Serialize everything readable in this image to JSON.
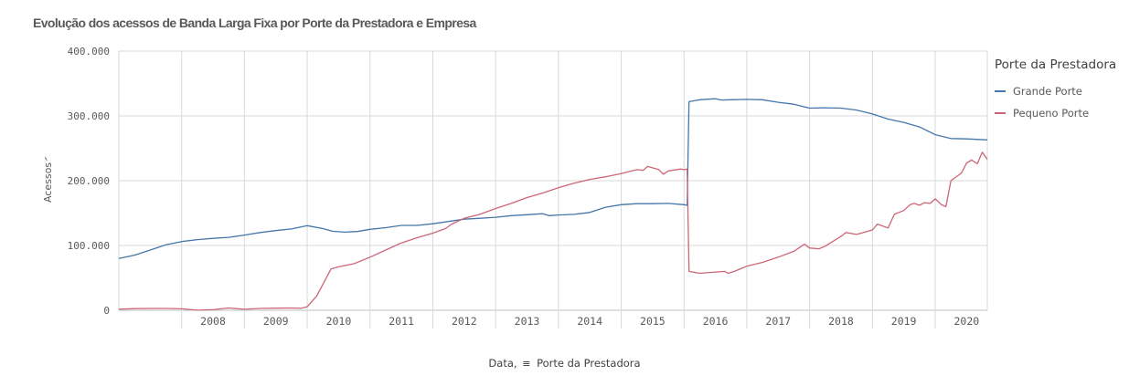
{
  "title": "Evolução dos acessos de Banda Larga Fixa por Porte da Prestadora e Empresa",
  "x_axis_label_prefix": "Data,",
  "x_axis_label_dim": "Porte da Prestadora",
  "colors": {
    "grande": "#4477aa",
    "pequeno": "#cc6677",
    "grid": "#d9d9d9",
    "text": "#595959"
  },
  "chart_data": {
    "type": "line",
    "title": "Evolução dos acessos de Banda Larga Fixa por Porte da Prestadora e Empresa",
    "xlabel": "Data, Porte da Prestadora",
    "ylabel": "Acessos",
    "xlim": [
      2007.0,
      2020.83
    ],
    "ylim": [
      0,
      400000
    ],
    "y_ticks": [
      "0",
      "100.000",
      "200.000",
      "300.000",
      "400.000"
    ],
    "y_tick_values": [
      0,
      100000,
      200000,
      300000,
      400000
    ],
    "x_ticks": [
      "2008",
      "2009",
      "2010",
      "2011",
      "2012",
      "2013",
      "2014",
      "2015",
      "2016",
      "2017",
      "2018",
      "2019",
      "2020"
    ],
    "legend": {
      "title": "Porte da Prestadora",
      "position": "right"
    },
    "series": [
      {
        "name": "Grande Porte",
        "color": "#4477aa",
        "points": [
          [
            2007.0,
            80000
          ],
          [
            2007.25,
            85000
          ],
          [
            2007.5,
            93000
          ],
          [
            2007.75,
            101000
          ],
          [
            2008.0,
            106000
          ],
          [
            2008.25,
            109000
          ],
          [
            2008.5,
            111000
          ],
          [
            2008.75,
            112500
          ],
          [
            2009.0,
            116000
          ],
          [
            2009.25,
            120000
          ],
          [
            2009.5,
            123000
          ],
          [
            2009.75,
            125500
          ],
          [
            2010.0,
            130500
          ],
          [
            2010.25,
            126000
          ],
          [
            2010.4,
            122000
          ],
          [
            2010.6,
            120500
          ],
          [
            2010.8,
            121500
          ],
          [
            2011.0,
            125000
          ],
          [
            2011.25,
            127500
          ],
          [
            2011.5,
            131000
          ],
          [
            2011.75,
            131000
          ],
          [
            2012.0,
            133500
          ],
          [
            2012.25,
            137000
          ],
          [
            2012.5,
            140500
          ],
          [
            2012.75,
            142000
          ],
          [
            2013.0,
            143500
          ],
          [
            2013.25,
            146000
          ],
          [
            2013.5,
            147500
          ],
          [
            2013.75,
            149000
          ],
          [
            2013.85,
            146000
          ],
          [
            2014.0,
            147000
          ],
          [
            2014.25,
            148000
          ],
          [
            2014.5,
            151000
          ],
          [
            2014.75,
            159000
          ],
          [
            2015.0,
            163000
          ],
          [
            2015.25,
            164500
          ],
          [
            2015.5,
            164500
          ],
          [
            2015.75,
            165000
          ],
          [
            2016.0,
            163000
          ],
          [
            2016.05,
            162000
          ],
          [
            2016.08,
            322000
          ],
          [
            2016.25,
            325000
          ],
          [
            2016.5,
            326500
          ],
          [
            2016.6,
            324500
          ],
          [
            2016.75,
            325000
          ],
          [
            2017.0,
            325500
          ],
          [
            2017.25,
            325000
          ],
          [
            2017.5,
            321000
          ],
          [
            2017.75,
            318000
          ],
          [
            2018.0,
            312000
          ],
          [
            2018.25,
            312500
          ],
          [
            2018.5,
            312000
          ],
          [
            2018.75,
            309000
          ],
          [
            2019.0,
            303000
          ],
          [
            2019.25,
            295000
          ],
          [
            2019.5,
            290000
          ],
          [
            2019.75,
            283000
          ],
          [
            2020.0,
            271000
          ],
          [
            2020.25,
            265000
          ],
          [
            2020.5,
            264500
          ],
          [
            2020.83,
            263000
          ]
        ]
      },
      {
        "name": "Pequeno Porte",
        "color": "#cc6677",
        "points": [
          [
            2007.0,
            1500
          ],
          [
            2007.25,
            2500
          ],
          [
            2007.5,
            2800
          ],
          [
            2007.75,
            2800
          ],
          [
            2008.0,
            2300
          ],
          [
            2008.25,
            200
          ],
          [
            2008.5,
            800
          ],
          [
            2008.75,
            3500
          ],
          [
            2009.0,
            1500
          ],
          [
            2009.25,
            2800
          ],
          [
            2009.5,
            3200
          ],
          [
            2009.75,
            3500
          ],
          [
            2009.9,
            3000
          ],
          [
            2010.0,
            5500
          ],
          [
            2010.15,
            22000
          ],
          [
            2010.38,
            64000
          ],
          [
            2010.5,
            67000
          ],
          [
            2010.75,
            72000
          ],
          [
            2011.0,
            82000
          ],
          [
            2011.25,
            93000
          ],
          [
            2011.5,
            104000
          ],
          [
            2011.75,
            112000
          ],
          [
            2012.0,
            119000
          ],
          [
            2012.2,
            126000
          ],
          [
            2012.3,
            133000
          ],
          [
            2012.5,
            142000
          ],
          [
            2012.75,
            148000
          ],
          [
            2013.0,
            157000
          ],
          [
            2013.25,
            165000
          ],
          [
            2013.5,
            174000
          ],
          [
            2013.75,
            181000
          ],
          [
            2014.0,
            189000
          ],
          [
            2014.25,
            196000
          ],
          [
            2014.5,
            202000
          ],
          [
            2014.75,
            206000
          ],
          [
            2015.0,
            211000
          ],
          [
            2015.25,
            217000
          ],
          [
            2015.35,
            216000
          ],
          [
            2015.42,
            222000
          ],
          [
            2015.6,
            217000
          ],
          [
            2015.67,
            210000
          ],
          [
            2015.75,
            215000
          ],
          [
            2015.95,
            218000
          ],
          [
            2016.0,
            217000
          ],
          [
            2016.05,
            218000
          ],
          [
            2016.08,
            60000
          ],
          [
            2016.25,
            57000
          ],
          [
            2016.5,
            59000
          ],
          [
            2016.65,
            60000
          ],
          [
            2016.7,
            57000
          ],
          [
            2016.8,
            60000
          ],
          [
            2016.9,
            64000
          ],
          [
            2017.0,
            68000
          ],
          [
            2017.25,
            74000
          ],
          [
            2017.5,
            82000
          ],
          [
            2017.75,
            91000
          ],
          [
            2017.92,
            102000
          ],
          [
            2018.0,
            96000
          ],
          [
            2018.15,
            95000
          ],
          [
            2018.25,
            99000
          ],
          [
            2018.5,
            114000
          ],
          [
            2018.58,
            120000
          ],
          [
            2018.75,
            117000
          ],
          [
            2019.0,
            124000
          ],
          [
            2019.08,
            133000
          ],
          [
            2019.25,
            127000
          ],
          [
            2019.35,
            148000
          ],
          [
            2019.5,
            154000
          ],
          [
            2019.6,
            163000
          ],
          [
            2019.67,
            165000
          ],
          [
            2019.75,
            162000
          ],
          [
            2019.83,
            166000
          ],
          [
            2019.92,
            165000
          ],
          [
            2020.0,
            172000
          ],
          [
            2020.1,
            163000
          ],
          [
            2020.17,
            160000
          ],
          [
            2020.25,
            200000
          ],
          [
            2020.42,
            212000
          ],
          [
            2020.5,
            227000
          ],
          [
            2020.58,
            232000
          ],
          [
            2020.67,
            226000
          ],
          [
            2020.75,
            244000
          ],
          [
            2020.83,
            233000
          ]
        ]
      }
    ]
  }
}
